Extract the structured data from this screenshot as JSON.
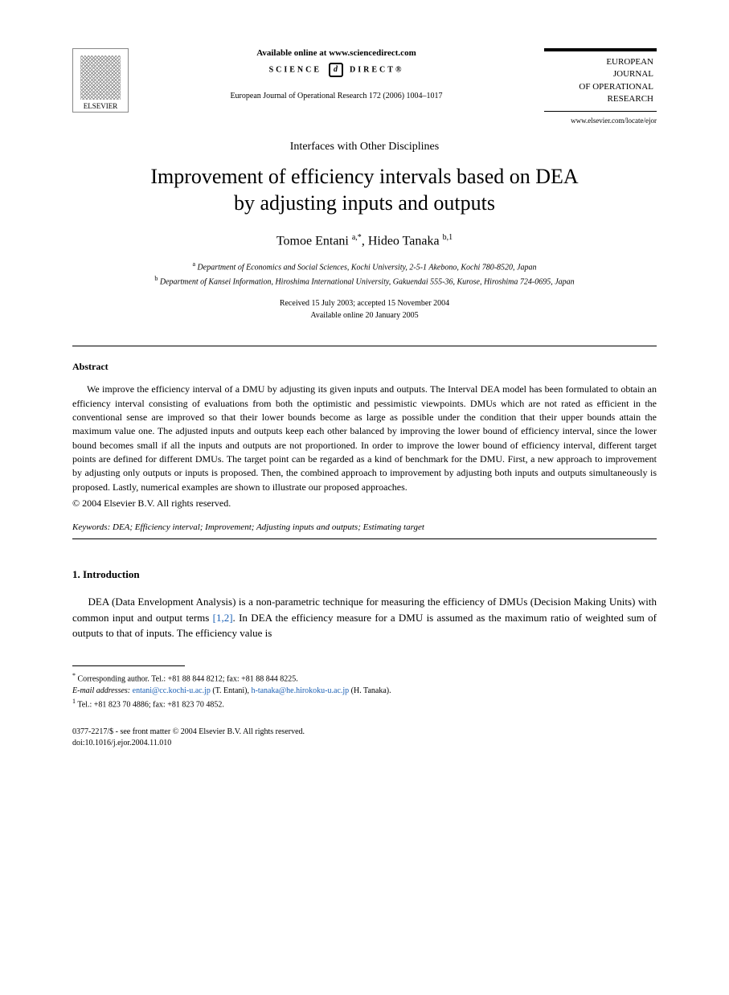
{
  "header": {
    "publisher_name": "ELSEVIER",
    "available_text": "Available online at www.sciencedirect.com",
    "science_direct_left": "SCIENCE",
    "science_direct_right": "DIRECT®",
    "journal_reference": "European Journal of Operational Research 172 (2006) 1004–1017",
    "journal_box_line1": "EUROPEAN",
    "journal_box_line2": "JOURNAL",
    "journal_box_line3": "OF OPERATIONAL",
    "journal_box_line4": "RESEARCH",
    "journal_url": "www.elsevier.com/locate/ejor"
  },
  "article": {
    "section_label": "Interfaces with Other Disciplines",
    "title_line1": "Improvement of efficiency intervals based on DEA",
    "title_line2": "by adjusting inputs and outputs",
    "author1_name": "Tomoe Entani",
    "author1_sup": "a,*",
    "author2_name": "Hideo Tanaka",
    "author2_sup": "b,1",
    "affiliation_a_sup": "a",
    "affiliation_a": "Department of Economics and Social Sciences, Kochi University, 2-5-1 Akebono, Kochi 780-8520, Japan",
    "affiliation_b_sup": "b",
    "affiliation_b": "Department of Kansei Information, Hiroshima International University, Gakuendai 555-36, Kurose, Hiroshima 724-0695, Japan",
    "received": "Received 15 July 2003; accepted 15 November 2004",
    "available_online": "Available online 20 January 2005"
  },
  "abstract": {
    "heading": "Abstract",
    "body": "We improve the efficiency interval of a DMU by adjusting its given inputs and outputs. The Interval DEA model has been formulated to obtain an efficiency interval consisting of evaluations from both the optimistic and pessimistic viewpoints. DMUs which are not rated as efficient in the conventional sense are improved so that their lower bounds become as large as possible under the condition that their upper bounds attain the maximum value one. The adjusted inputs and outputs keep each other balanced by improving the lower bound of efficiency interval, since the lower bound becomes small if all the inputs and outputs are not proportioned. In order to improve the lower bound of efficiency interval, different target points are defined for different DMUs. The target point can be regarded as a kind of benchmark for the DMU. First, a new approach to improvement by adjusting only outputs or inputs is proposed. Then, the combined approach to improvement by adjusting both inputs and outputs simultaneously is proposed. Lastly, numerical examples are shown to illustrate our proposed approaches.",
    "copyright": "© 2004 Elsevier B.V. All rights reserved.",
    "keywords_label": "Keywords:",
    "keywords_text": " DEA; Efficiency interval; Improvement; Adjusting inputs and outputs; Estimating target"
  },
  "intro": {
    "heading": "1. Introduction",
    "body_part1": "DEA (Data Envelopment Analysis) is a non-parametric technique for measuring the efficiency of DMUs (Decision Making Units) with common input and output terms ",
    "ref_text": "[1,2]",
    "body_part2": ". In DEA the efficiency measure for a DMU is assumed as the maximum ratio of weighted sum of outputs to that of inputs. The efficiency value is"
  },
  "footnotes": {
    "corresponding_sup": "*",
    "corresponding": "Corresponding author. Tel.: +81 88 844 8212; fax: +81 88 844 8225.",
    "email_label": "E-mail addresses: ",
    "email1": "entani@cc.kochi-u.ac.jp",
    "email1_author": " (T. Entani), ",
    "email2": "h-tanaka@he.hirokoku-u.ac.jp",
    "email2_author": " (H. Tanaka).",
    "fn1_sup": "1",
    "fn1": "Tel.: +81 823 70 4886; fax: +81 823 70 4852."
  },
  "bottom": {
    "issn_line": "0377-2217/$ - see front matter © 2004 Elsevier B.V. All rights reserved.",
    "doi_line": "doi:10.1016/j.ejor.2004.11.010"
  },
  "colors": {
    "text": "#000000",
    "link": "#1a5fb4",
    "background": "#ffffff"
  },
  "typography": {
    "body_font": "Georgia, Times New Roman, serif",
    "title_size_pt": 20,
    "body_size_pt": 10,
    "footnote_size_pt": 8
  }
}
